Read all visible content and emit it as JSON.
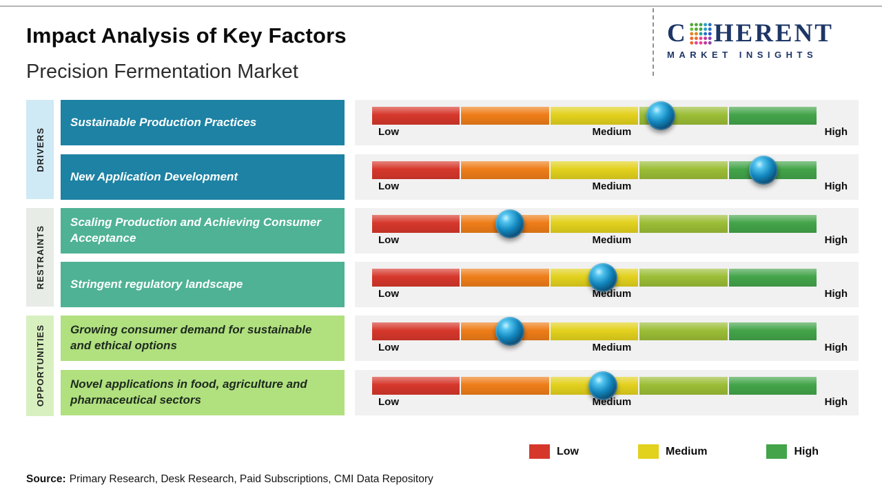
{
  "header": {
    "title": "Impact Analysis of Key Factors",
    "subtitle": "Precision Fermentation Market"
  },
  "logo": {
    "name": "Coherent Market Insights logo",
    "line1_prefix": "C",
    "line1_suffix": "HERENT",
    "line2": "MARKET INSIGHTS",
    "navy": "#1d3666"
  },
  "chart_data": {
    "type": "slider-impact-scale",
    "title": "Impact Analysis of Key Factors",
    "subtitle": "Precision Fermentation Market",
    "scale_labels": [
      "Low",
      "Medium",
      "High"
    ],
    "scale_range_pct": [
      0,
      100
    ],
    "bar_colors": [
      "#d6372b",
      "#ee7d18",
      "#e2d11d",
      "#9bbd36",
      "#43a449"
    ],
    "groups": [
      {
        "label": "DRIVERS",
        "color": "#cfe9f5",
        "factor_indexes": [
          0,
          1
        ]
      },
      {
        "label": "RESTRAINTS",
        "color": "#e7ece7",
        "factor_indexes": [
          2,
          3
        ]
      },
      {
        "label": "OPPORTUNITIES",
        "color": "#d8f0bf",
        "factor_indexes": [
          4,
          5
        ]
      }
    ],
    "factors": [
      {
        "group": "Drivers",
        "label": "Sustainable Production Practices",
        "impact_pct": 65,
        "impact_level": "Medium-High",
        "box_color": "#1d82a4"
      },
      {
        "group": "Drivers",
        "label": "New Application Development",
        "impact_pct": 88,
        "impact_level": "High",
        "box_color": "#1d82a4"
      },
      {
        "group": "Restraints",
        "label": "Scaling Production and Achieving Consumer Acceptance",
        "impact_pct": 31,
        "impact_level": "Low-Medium",
        "box_color": "#4fb295"
      },
      {
        "group": "Restraints",
        "label": "Stringent regulatory landscape",
        "impact_pct": 52,
        "impact_level": "Medium",
        "box_color": "#4fb295"
      },
      {
        "group": "Opportunities",
        "label": "Growing consumer demand for sustainable and ethical options",
        "impact_pct": 31,
        "impact_level": "Low-Medium",
        "box_color": "#b1e07f"
      },
      {
        "group": "Opportunities",
        "label": "Novel applications in food, agriculture and pharmaceutical sectors",
        "impact_pct": 52,
        "impact_level": "Medium",
        "box_color": "#b1e07f"
      }
    ]
  },
  "legend": [
    {
      "label": "Low",
      "color": "#d6372b"
    },
    {
      "label": "Medium",
      "color": "#e2d11d"
    },
    {
      "label": "High",
      "color": "#43a449"
    }
  ],
  "source": {
    "prefix": "Source:",
    "text": "Primary Research, Desk Research, Paid Subscriptions, CMI Data Repository"
  }
}
